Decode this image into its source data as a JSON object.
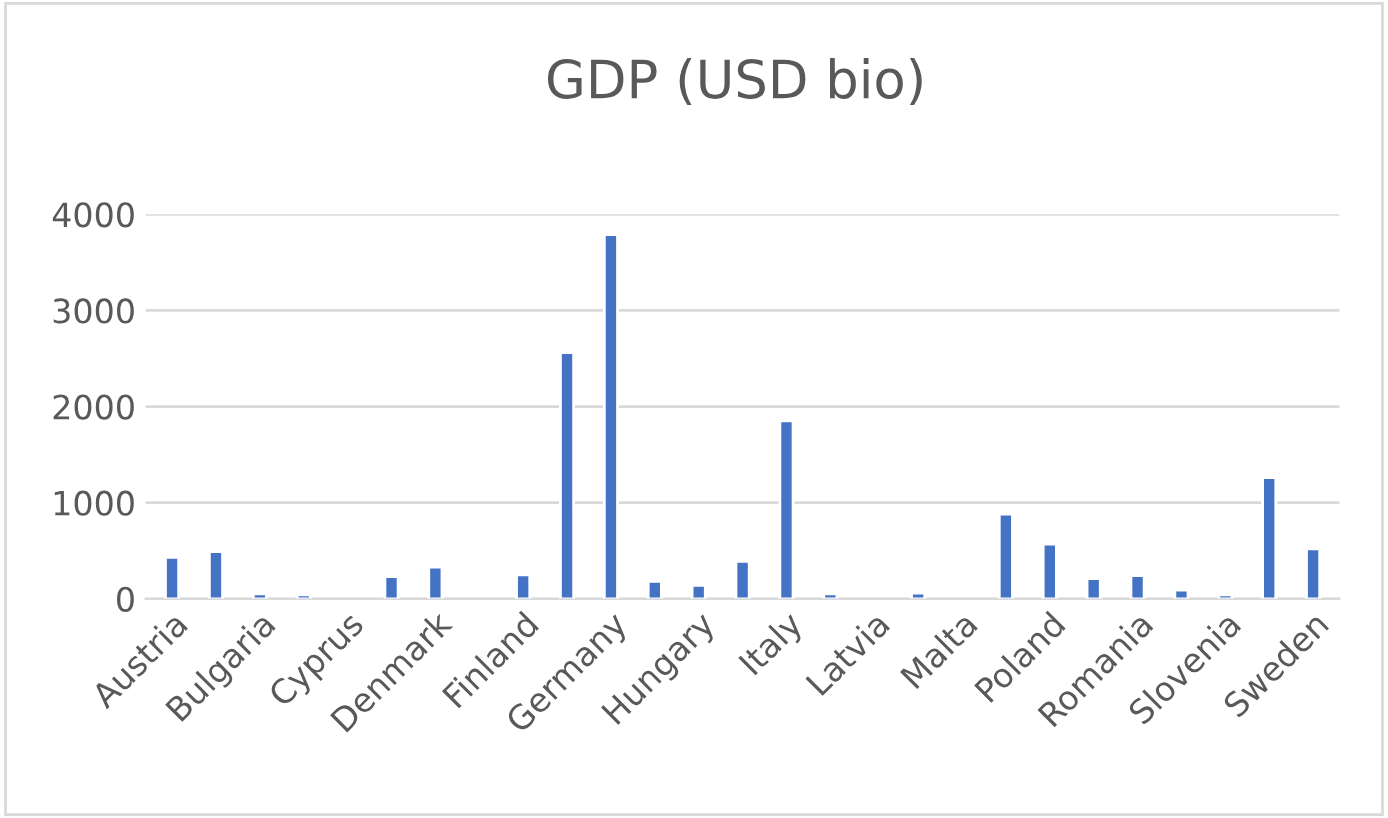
{
  "chart_data": {
    "type": "bar",
    "title": "GDP (USD bio)",
    "categories": [
      "Austria",
      null,
      "Bulgaria",
      null,
      "Cyprus",
      null,
      "Denmark",
      null,
      "Finland",
      null,
      "Germany",
      null,
      "Hungary",
      null,
      "Italy",
      null,
      "Latvia",
      null,
      "Malta",
      null,
      "Poland",
      null,
      "Romania",
      null,
      "Slovenia",
      null,
      "Sweden"
    ],
    "values": [
      430,
      490,
      50,
      40,
      null,
      230,
      330,
      null,
      250,
      2560,
      3790,
      180,
      140,
      390,
      1850,
      50,
      null,
      60,
      null,
      880,
      570,
      210,
      240,
      90,
      40,
      1260,
      520
    ],
    "color": "#4472c4",
    "ylim": [
      0,
      4000
    ],
    "yticks": [
      0,
      1000,
      2000,
      3000,
      4000
    ],
    "grid": "y"
  }
}
